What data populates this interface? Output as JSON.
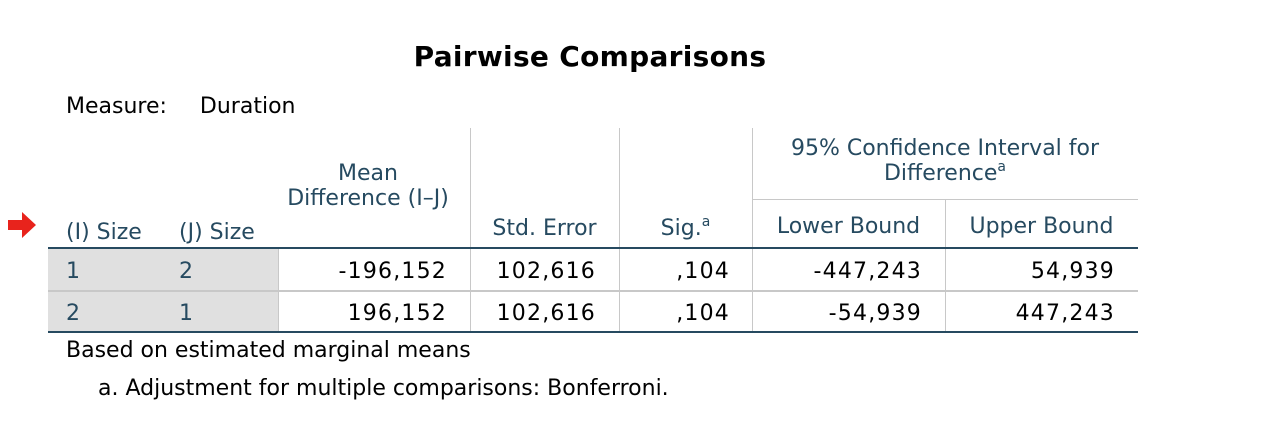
{
  "title": "Pairwise Comparisons",
  "measure": {
    "label": "Measure:",
    "value": "Duration"
  },
  "headers": {
    "i_size": "(I) Size",
    "j_size": "(J) Size",
    "mean_diff": "Mean Difference (I–J)",
    "std_error": "Std. Error",
    "sig": "Sig.",
    "sig_sup": "a",
    "ci_group": "95% Confidence Interval for Difference",
    "ci_sup": "a",
    "lower": "Lower Bound",
    "upper": "Upper Bound"
  },
  "rows": [
    {
      "i": "1",
      "j": "2",
      "mean_diff": "-196,152",
      "std_error": "102,616",
      "sig": ",104",
      "lower": "-447,243",
      "upper": "54,939"
    },
    {
      "i": "2",
      "j": "1",
      "mean_diff": "196,152",
      "std_error": "102,616",
      "sig": ",104",
      "lower": "-54,939",
      "upper": "447,243"
    }
  ],
  "footnotes": {
    "based_on": "Based on estimated marginal means",
    "adjustment": "a. Adjustment for multiple comparisons: Bonferroni."
  },
  "colors": {
    "header_text": "#264a60",
    "row_label_bg": "#e0e0e0",
    "rule": "#264a60",
    "arrow": "#e8231c"
  }
}
